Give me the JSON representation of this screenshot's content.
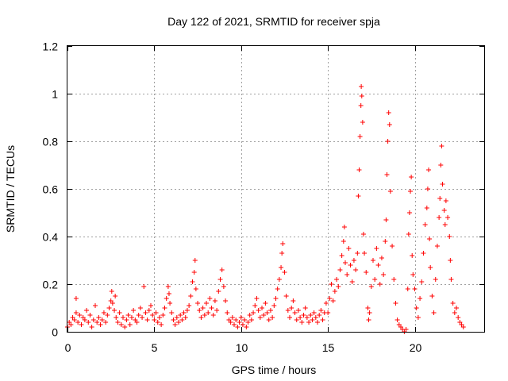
{
  "chart_data": {
    "type": "scatter",
    "title": "Day 122 of 2021, SRMTID for receiver spja",
    "xlabel": "GPS time / hours",
    "ylabel": "SRMTID / TECUs",
    "xlim": [
      0,
      24
    ],
    "ylim": [
      0,
      1.2
    ],
    "x_ticks": [
      0,
      5,
      10,
      15,
      20
    ],
    "x_tick_labels": [
      "0",
      "5",
      "10",
      "15",
      "20"
    ],
    "y_ticks": [
      0,
      0.2,
      0.4,
      0.6,
      0.8,
      1.0,
      1.2
    ],
    "y_tick_labels": [
      "0",
      "0.2",
      "0.4",
      "0.6",
      "0.8",
      "1",
      "1.2"
    ],
    "grid": true,
    "marker": "+",
    "series": [
      {
        "name": "SRMTID",
        "color": "#ff0000",
        "points": [
          [
            0.0,
            0.02
          ],
          [
            0.1,
            0.04
          ],
          [
            0.2,
            0.03
          ],
          [
            0.3,
            0.06
          ],
          [
            0.4,
            0.05
          ],
          [
            0.5,
            0.08
          ],
          [
            0.5,
            0.14
          ],
          [
            0.6,
            0.04
          ],
          [
            0.7,
            0.07
          ],
          [
            0.8,
            0.03
          ],
          [
            0.9,
            0.06
          ],
          [
            1.0,
            0.05
          ],
          [
            1.1,
            0.09
          ],
          [
            1.2,
            0.04
          ],
          [
            1.3,
            0.07
          ],
          [
            1.4,
            0.02
          ],
          [
            1.5,
            0.05
          ],
          [
            1.6,
            0.11
          ],
          [
            1.7,
            0.04
          ],
          [
            1.8,
            0.06
          ],
          [
            1.9,
            0.03
          ],
          [
            2.0,
            0.05
          ],
          [
            2.1,
            0.08
          ],
          [
            2.2,
            0.04
          ],
          [
            2.3,
            0.07
          ],
          [
            2.4,
            0.1
          ],
          [
            2.5,
            0.13
          ],
          [
            2.55,
            0.17
          ],
          [
            2.6,
            0.12
          ],
          [
            2.7,
            0.09
          ],
          [
            2.75,
            0.15
          ],
          [
            2.8,
            0.06
          ],
          [
            2.9,
            0.04
          ],
          [
            3.0,
            0.08
          ],
          [
            3.1,
            0.03
          ],
          [
            3.2,
            0.06
          ],
          [
            3.3,
            0.02
          ],
          [
            3.4,
            0.05
          ],
          [
            3.5,
            0.07
          ],
          [
            3.6,
            0.03
          ],
          [
            3.7,
            0.06
          ],
          [
            3.8,
            0.09
          ],
          [
            3.9,
            0.05
          ],
          [
            4.0,
            0.04
          ],
          [
            4.1,
            0.07
          ],
          [
            4.2,
            0.1
          ],
          [
            4.3,
            0.06
          ],
          [
            4.4,
            0.19
          ],
          [
            4.5,
            0.08
          ],
          [
            4.6,
            0.05
          ],
          [
            4.7,
            0.09
          ],
          [
            4.8,
            0.11
          ],
          [
            4.9,
            0.07
          ],
          [
            5.0,
            0.05
          ],
          [
            5.1,
            0.08
          ],
          [
            5.2,
            0.04
          ],
          [
            5.3,
            0.06
          ],
          [
            5.4,
            0.03
          ],
          [
            5.5,
            0.07
          ],
          [
            5.6,
            0.1
          ],
          [
            5.7,
            0.14
          ],
          [
            5.8,
            0.19
          ],
          [
            5.85,
            0.16
          ],
          [
            5.9,
            0.12
          ],
          [
            6.0,
            0.08
          ],
          [
            6.1,
            0.05
          ],
          [
            6.2,
            0.03
          ],
          [
            6.3,
            0.06
          ],
          [
            6.4,
            0.04
          ],
          [
            6.5,
            0.07
          ],
          [
            6.6,
            0.05
          ],
          [
            6.7,
            0.08
          ],
          [
            6.8,
            0.06
          ],
          [
            6.9,
            0.09
          ],
          [
            7.0,
            0.11
          ],
          [
            7.1,
            0.15
          ],
          [
            7.2,
            0.21
          ],
          [
            7.3,
            0.25
          ],
          [
            7.35,
            0.3
          ],
          [
            7.4,
            0.18
          ],
          [
            7.5,
            0.12
          ],
          [
            7.6,
            0.09
          ],
          [
            7.7,
            0.06
          ],
          [
            7.8,
            0.1
          ],
          [
            7.9,
            0.07
          ],
          [
            8.0,
            0.12
          ],
          [
            8.1,
            0.08
          ],
          [
            8.2,
            0.14
          ],
          [
            8.3,
            0.1
          ],
          [
            8.4,
            0.07
          ],
          [
            8.5,
            0.13
          ],
          [
            8.6,
            0.09
          ],
          [
            8.7,
            0.17
          ],
          [
            8.8,
            0.22
          ],
          [
            8.9,
            0.26
          ],
          [
            9.0,
            0.19
          ],
          [
            9.1,
            0.13
          ],
          [
            9.2,
            0.08
          ],
          [
            9.3,
            0.05
          ],
          [
            9.4,
            0.04
          ],
          [
            9.5,
            0.06
          ],
          [
            9.6,
            0.03
          ],
          [
            9.7,
            0.05
          ],
          [
            9.8,
            0.02
          ],
          [
            9.9,
            0.04
          ],
          [
            10.0,
            0.06
          ],
          [
            10.1,
            0.03
          ],
          [
            10.2,
            0.05
          ],
          [
            10.3,
            0.02
          ],
          [
            10.4,
            0.04
          ],
          [
            10.5,
            0.07
          ],
          [
            10.6,
            0.05
          ],
          [
            10.7,
            0.08
          ],
          [
            10.8,
            0.11
          ],
          [
            10.9,
            0.14
          ],
          [
            11.0,
            0.09
          ],
          [
            11.1,
            0.06
          ],
          [
            11.2,
            0.1
          ],
          [
            11.3,
            0.07
          ],
          [
            11.4,
            0.12
          ],
          [
            11.5,
            0.08
          ],
          [
            11.6,
            0.05
          ],
          [
            11.7,
            0.09
          ],
          [
            11.8,
            0.06
          ],
          [
            11.9,
            0.11
          ],
          [
            12.0,
            0.14
          ],
          [
            12.1,
            0.18
          ],
          [
            12.2,
            0.22
          ],
          [
            12.3,
            0.27
          ],
          [
            12.35,
            0.33
          ],
          [
            12.4,
            0.37
          ],
          [
            12.5,
            0.25
          ],
          [
            12.6,
            0.15
          ],
          [
            12.7,
            0.09
          ],
          [
            12.8,
            0.06
          ],
          [
            12.9,
            0.1
          ],
          [
            13.0,
            0.13
          ],
          [
            13.1,
            0.08
          ],
          [
            13.2,
            0.05
          ],
          [
            13.3,
            0.09
          ],
          [
            13.4,
            0.06
          ],
          [
            13.5,
            0.04
          ],
          [
            13.6,
            0.07
          ],
          [
            13.7,
            0.1
          ],
          [
            13.8,
            0.06
          ],
          [
            13.9,
            0.04
          ],
          [
            14.0,
            0.07
          ],
          [
            14.1,
            0.05
          ],
          [
            14.2,
            0.08
          ],
          [
            14.3,
            0.06
          ],
          [
            14.4,
            0.04
          ],
          [
            14.5,
            0.07
          ],
          [
            14.6,
            0.09
          ],
          [
            14.7,
            0.05
          ],
          [
            14.8,
            0.08
          ],
          [
            14.9,
            0.12
          ],
          [
            15.0,
            0.08
          ],
          [
            15.1,
            0.14
          ],
          [
            15.2,
            0.2
          ],
          [
            15.3,
            0.13
          ],
          [
            15.4,
            0.17
          ],
          [
            15.5,
            0.22
          ],
          [
            15.6,
            0.19
          ],
          [
            15.7,
            0.26
          ],
          [
            15.8,
            0.32
          ],
          [
            15.9,
            0.38
          ],
          [
            15.95,
            0.44
          ],
          [
            16.0,
            0.29
          ],
          [
            16.1,
            0.24
          ],
          [
            16.2,
            0.35
          ],
          [
            16.3,
            0.28
          ],
          [
            16.4,
            0.21
          ],
          [
            16.5,
            0.3
          ],
          [
            16.6,
            0.26
          ],
          [
            16.7,
            0.33
          ],
          [
            16.75,
            0.57
          ],
          [
            16.8,
            0.68
          ],
          [
            16.85,
            0.82
          ],
          [
            16.9,
            0.95
          ],
          [
            16.92,
            1.03
          ],
          [
            16.95,
            0.99
          ],
          [
            17.0,
            0.88
          ],
          [
            17.05,
            0.41
          ],
          [
            17.1,
            0.33
          ],
          [
            17.2,
            0.25
          ],
          [
            17.3,
            0.1
          ],
          [
            17.35,
            0.05
          ],
          [
            17.4,
            0.08
          ],
          [
            17.5,
            0.19
          ],
          [
            17.6,
            0.3
          ],
          [
            17.7,
            0.22
          ],
          [
            17.8,
            0.35
          ],
          [
            17.9,
            0.28
          ],
          [
            18.0,
            0.2
          ],
          [
            18.1,
            0.31
          ],
          [
            18.2,
            0.24
          ],
          [
            18.3,
            0.38
          ],
          [
            18.35,
            0.47
          ],
          [
            18.4,
            0.66
          ],
          [
            18.45,
            0.8
          ],
          [
            18.5,
            0.92
          ],
          [
            18.55,
            0.87
          ],
          [
            18.6,
            0.59
          ],
          [
            18.7,
            0.36
          ],
          [
            18.8,
            0.22
          ],
          [
            18.9,
            0.12
          ],
          [
            19.0,
            0.05
          ],
          [
            19.1,
            0.03
          ],
          [
            19.2,
            0.02
          ],
          [
            19.3,
            0.01
          ],
          [
            19.4,
            0.0
          ],
          [
            19.5,
            0.01
          ],
          [
            19.6,
            0.18
          ],
          [
            19.65,
            0.41
          ],
          [
            19.7,
            0.5
          ],
          [
            19.75,
            0.59
          ],
          [
            19.8,
            0.65
          ],
          [
            19.85,
            0.32
          ],
          [
            19.9,
            0.24
          ],
          [
            20.0,
            0.18
          ],
          [
            20.1,
            0.1
          ],
          [
            20.2,
            0.06
          ],
          [
            20.3,
            0.14
          ],
          [
            20.4,
            0.21
          ],
          [
            20.5,
            0.33
          ],
          [
            20.6,
            0.45
          ],
          [
            20.7,
            0.52
          ],
          [
            20.75,
            0.6
          ],
          [
            20.8,
            0.68
          ],
          [
            20.85,
            0.39
          ],
          [
            20.9,
            0.27
          ],
          [
            21.0,
            0.15
          ],
          [
            21.1,
            0.08
          ],
          [
            21.2,
            0.22
          ],
          [
            21.3,
            0.36
          ],
          [
            21.4,
            0.48
          ],
          [
            21.45,
            0.56
          ],
          [
            21.5,
            0.7
          ],
          [
            21.55,
            0.78
          ],
          [
            21.6,
            0.62
          ],
          [
            21.7,
            0.51
          ],
          [
            21.75,
            0.45
          ],
          [
            21.8,
            0.55
          ],
          [
            21.9,
            0.48
          ],
          [
            22.0,
            0.4
          ],
          [
            22.05,
            0.3
          ],
          [
            22.1,
            0.22
          ],
          [
            22.2,
            0.12
          ],
          [
            22.3,
            0.08
          ],
          [
            22.4,
            0.1
          ],
          [
            22.5,
            0.06
          ],
          [
            22.6,
            0.04
          ],
          [
            22.7,
            0.03
          ],
          [
            22.8,
            0.02
          ]
        ]
      }
    ]
  }
}
